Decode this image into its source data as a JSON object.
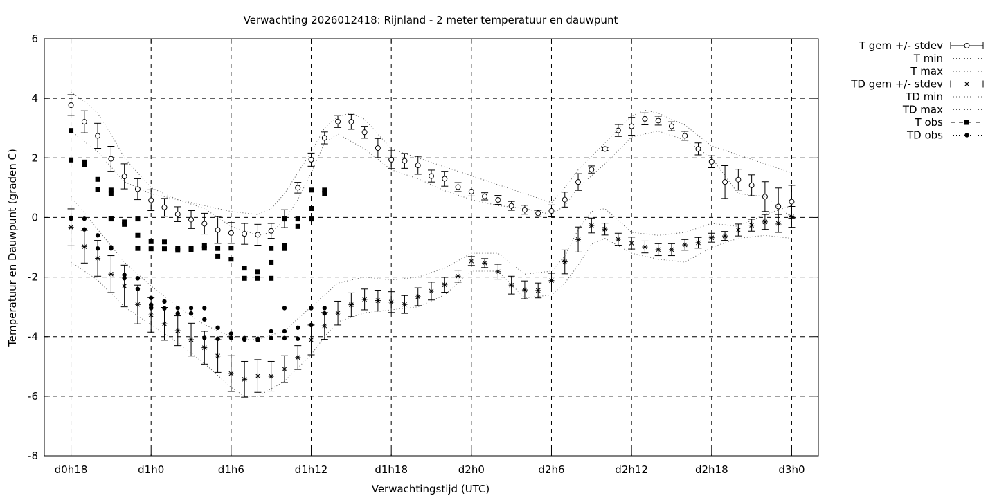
{
  "chart_data": {
    "type": "line",
    "title": "Verwachting 2026012418: Rijnland - 2 meter temperatuur en dauwpunt",
    "xlabel": "Verwachtingstijd (UTC)",
    "ylabel": "Temperatuur en Dauwpunt (graden C)",
    "ylim": [
      -8,
      6
    ],
    "xlim": [
      -2,
      56
    ],
    "x_unit": "hours since d0h18",
    "yticks": [
      "-8",
      "-6",
      "-4",
      "-2",
      "0",
      "2",
      "4",
      "6"
    ],
    "xticks": [
      "d0h18",
      "d1h0",
      "d1h6",
      "d1h12",
      "d1h18",
      "d2h0",
      "d2h6",
      "d2h12",
      "d2h18",
      "d3h0"
    ],
    "grid": true,
    "legend_position": "outside-right",
    "series": [
      {
        "name": "T gem +/- stdev",
        "style": "errorbar-open-circle",
        "x": [
          0,
          1,
          2,
          3,
          4,
          5,
          6,
          7,
          8,
          9,
          10,
          11,
          12,
          13,
          14,
          15,
          16,
          17,
          18,
          19,
          20,
          21,
          22,
          23,
          24,
          25,
          26,
          27,
          28,
          29,
          30,
          31,
          32,
          33,
          34,
          35,
          36,
          37,
          38,
          39,
          40,
          41,
          42,
          43,
          44,
          45,
          46,
          47,
          48,
          49,
          50,
          51,
          52,
          53,
          54
        ],
        "y": [
          3.77,
          3.21,
          2.74,
          1.97,
          1.38,
          0.95,
          0.58,
          0.34,
          0.11,
          -0.07,
          -0.21,
          -0.42,
          -0.52,
          -0.55,
          -0.58,
          -0.45,
          -0.04,
          1.0,
          1.94,
          2.67,
          3.22,
          3.21,
          2.86,
          2.33,
          1.94,
          1.9,
          1.75,
          1.39,
          1.3,
          1.02,
          0.87,
          0.71,
          0.59,
          0.39,
          0.26,
          0.14,
          0.22,
          0.6,
          1.19,
          1.61,
          2.3,
          2.92,
          3.06,
          3.31,
          3.25,
          3.06,
          2.74,
          2.3,
          1.87,
          1.19,
          1.27,
          1.08,
          0.7,
          0.37,
          0.53
        ],
        "err": [
          0.35,
          0.37,
          0.42,
          0.42,
          0.42,
          0.35,
          0.35,
          0.3,
          0.25,
          0.3,
          0.35,
          0.45,
          0.35,
          0.35,
          0.35,
          0.25,
          0.3,
          0.18,
          0.22,
          0.2,
          0.2,
          0.25,
          0.2,
          0.32,
          0.3,
          0.25,
          0.3,
          0.2,
          0.25,
          0.15,
          0.15,
          0.12,
          0.15,
          0.15,
          0.15,
          0.1,
          0.2,
          0.25,
          0.28,
          0.12,
          0.05,
          0.2,
          0.3,
          0.2,
          0.15,
          0.15,
          0.15,
          0.2,
          0.2,
          0.55,
          0.35,
          0.35,
          0.5,
          0.62,
          0.55
        ]
      },
      {
        "name": "T min",
        "style": "dotted",
        "x": [
          0,
          2,
          4,
          6,
          8,
          10,
          12,
          14,
          15,
          16,
          17,
          18,
          19,
          20,
          22,
          24,
          26,
          28,
          30,
          32,
          34,
          36,
          37,
          38,
          40,
          42,
          44,
          46,
          48,
          50,
          52,
          54
        ],
        "y": [
          2.9,
          2.2,
          1.2,
          0.8,
          0.6,
          0.3,
          -0.3,
          -0.6,
          -0.5,
          -0.1,
          0.6,
          1.5,
          2.5,
          2.8,
          2.3,
          1.6,
          1.3,
          0.9,
          0.6,
          0.4,
          0.3,
          0.1,
          0.4,
          1.0,
          1.8,
          2.7,
          2.9,
          2.6,
          2.0,
          0.8,
          0.7,
          0.0
        ]
      },
      {
        "name": "T max",
        "style": "dotted",
        "x": [
          0,
          1,
          2,
          3,
          4,
          5,
          6,
          8,
          10,
          12,
          14,
          15,
          16,
          17,
          18,
          19,
          20,
          21,
          22,
          24,
          26,
          28,
          30,
          32,
          34,
          36,
          37,
          38,
          40,
          42,
          43,
          44,
          46,
          48,
          50,
          52,
          54
        ],
        "y": [
          4.2,
          3.9,
          3.5,
          2.8,
          2.0,
          1.5,
          1.0,
          0.6,
          0.4,
          0.2,
          0.1,
          0.3,
          0.8,
          1.5,
          2.2,
          3.0,
          3.4,
          3.5,
          3.3,
          2.3,
          2.0,
          1.7,
          1.4,
          1.1,
          0.8,
          0.5,
          1.0,
          1.6,
          2.5,
          3.4,
          3.6,
          3.5,
          3.1,
          2.4,
          2.1,
          1.8,
          1.5
        ]
      },
      {
        "name": "TD gem +/- stdev",
        "style": "errorbar-star",
        "x": [
          0,
          1,
          2,
          3,
          4,
          5,
          6,
          7,
          8,
          9,
          10,
          11,
          12,
          13,
          14,
          15,
          16,
          17,
          18,
          19,
          20,
          21,
          22,
          23,
          24,
          25,
          26,
          27,
          28,
          29,
          30,
          31,
          32,
          33,
          34,
          35,
          36,
          37,
          38,
          39,
          40,
          41,
          42,
          43,
          44,
          45,
          46,
          47,
          48,
          49,
          50,
          51,
          52,
          53,
          54
        ],
        "y": [
          -0.33,
          -0.98,
          -1.37,
          -1.9,
          -2.3,
          -2.92,
          -3.27,
          -3.57,
          -3.8,
          -4.1,
          -4.37,
          -4.65,
          -5.24,
          -5.43,
          -5.32,
          -5.33,
          -5.09,
          -4.7,
          -4.11,
          -3.64,
          -3.21,
          -2.93,
          -2.75,
          -2.79,
          -2.84,
          -2.92,
          -2.66,
          -2.47,
          -2.26,
          -1.97,
          -1.46,
          -1.53,
          -1.82,
          -2.27,
          -2.43,
          -2.45,
          -2.12,
          -1.49,
          -0.74,
          -0.27,
          -0.39,
          -0.73,
          -0.86,
          -0.99,
          -1.08,
          -1.08,
          -0.92,
          -0.85,
          -0.68,
          -0.62,
          -0.42,
          -0.26,
          -0.15,
          -0.2,
          0.02
        ],
        "err": [
          0.62,
          0.55,
          0.6,
          0.62,
          0.7,
          0.65,
          0.58,
          0.55,
          0.5,
          0.55,
          0.55,
          0.55,
          0.6,
          0.6,
          0.55,
          0.5,
          0.45,
          0.4,
          0.5,
          0.45,
          0.4,
          0.4,
          0.35,
          0.35,
          0.35,
          0.3,
          0.3,
          0.3,
          0.25,
          0.2,
          0.15,
          0.15,
          0.25,
          0.3,
          0.3,
          0.25,
          0.25,
          0.4,
          0.42,
          0.25,
          0.2,
          0.2,
          0.2,
          0.2,
          0.2,
          0.2,
          0.18,
          0.18,
          0.15,
          0.15,
          0.2,
          0.2,
          0.25,
          0.3,
          0.35
        ]
      },
      {
        "name": "TD min",
        "style": "dotted",
        "x": [
          0,
          2,
          4,
          6,
          8,
          10,
          12,
          13,
          14,
          16,
          18,
          19,
          20,
          22,
          24,
          26,
          28,
          30,
          32,
          34,
          36,
          37,
          38,
          39,
          40,
          42,
          44,
          46,
          48,
          50,
          52,
          54
        ],
        "y": [
          -1.5,
          -2.1,
          -3.0,
          -3.6,
          -4.2,
          -4.9,
          -5.7,
          -6.0,
          -6.0,
          -5.5,
          -4.6,
          -4.0,
          -3.5,
          -3.2,
          -3.1,
          -3.0,
          -2.6,
          -1.8,
          -1.8,
          -2.7,
          -2.6,
          -2.2,
          -1.6,
          -0.9,
          -0.7,
          -1.2,
          -1.4,
          -1.5,
          -1.0,
          -0.7,
          -0.6,
          -0.7
        ]
      },
      {
        "name": "TD max",
        "style": "dotted",
        "x": [
          0,
          2,
          4,
          6,
          8,
          10,
          12,
          13,
          14,
          16,
          18,
          19,
          20,
          22,
          24,
          26,
          28,
          30,
          32,
          34,
          36,
          37,
          38,
          39,
          40,
          42,
          44,
          46,
          48,
          50,
          52,
          54
        ],
        "y": [
          0.7,
          -0.4,
          -1.5,
          -2.3,
          -3.0,
          -3.6,
          -4.0,
          -4.1,
          -4.1,
          -3.8,
          -3.0,
          -2.6,
          -2.2,
          -2.0,
          -2.1,
          -2.0,
          -1.7,
          -1.2,
          -1.2,
          -1.9,
          -1.8,
          -1.3,
          -0.4,
          0.2,
          0.3,
          -0.5,
          -0.6,
          -0.5,
          -0.2,
          -0.3,
          0.1,
          0.4
        ]
      },
      {
        "name": "T obs",
        "style": "filled-square",
        "x": [
          0,
          0,
          1,
          1,
          2,
          2,
          3,
          3,
          3,
          3,
          4,
          4,
          5,
          5,
          5,
          6,
          6,
          7,
          7,
          8,
          8,
          9,
          9,
          10,
          10,
          11,
          11,
          12,
          12,
          13,
          13,
          14,
          14,
          15,
          15,
          15,
          16,
          16,
          16,
          17,
          17,
          18,
          18,
          18,
          19,
          19
        ],
        "y": [
          2.92,
          1.93,
          1.86,
          1.77,
          1.28,
          0.94,
          0.92,
          0.8,
          -0.05,
          -0.04,
          -0.15,
          -0.23,
          -0.05,
          -0.6,
          -1.04,
          -0.81,
          -1.05,
          -0.82,
          -1.05,
          -1.04,
          -1.1,
          -1.04,
          -1.07,
          -0.93,
          -1.03,
          -1.04,
          -1.3,
          -1.03,
          -1.4,
          -1.7,
          -2.04,
          -1.82,
          -2.04,
          -1.51,
          -1.04,
          -2.04,
          -0.05,
          -0.95,
          -1.04,
          -0.05,
          -0.3,
          0.92,
          0.3,
          -0.05,
          0.92,
          0.81
        ]
      },
      {
        "name": "TD obs",
        "style": "filled-circle",
        "x": [
          0,
          0,
          1,
          1,
          2,
          2,
          3,
          3,
          4,
          4,
          5,
          5,
          5,
          6,
          6,
          6,
          6,
          7,
          7,
          8,
          8,
          9,
          9,
          10,
          10,
          10,
          11,
          11,
          12,
          12,
          13,
          13,
          14,
          14,
          15,
          15,
          16,
          16,
          16,
          17,
          17,
          18,
          18,
          19,
          19
        ],
        "y": [
          -0.01,
          -0.04,
          -0.04,
          -0.4,
          -0.6,
          -1.04,
          -1.0,
          -1.04,
          -1.93,
          -2.04,
          -2.04,
          -2.04,
          -2.4,
          -2.7,
          -2.93,
          -3.03,
          -3.04,
          -2.82,
          -3.05,
          -3.04,
          -3.22,
          -3.04,
          -3.22,
          -3.04,
          -3.42,
          -4.04,
          -3.7,
          -4.07,
          -3.9,
          -4.04,
          -4.05,
          -4.1,
          -4.07,
          -4.12,
          -3.82,
          -4.05,
          -3.04,
          -3.82,
          -4.05,
          -3.7,
          -4.07,
          -3.04,
          -3.61,
          -3.04,
          -3.22
        ]
      }
    ]
  }
}
